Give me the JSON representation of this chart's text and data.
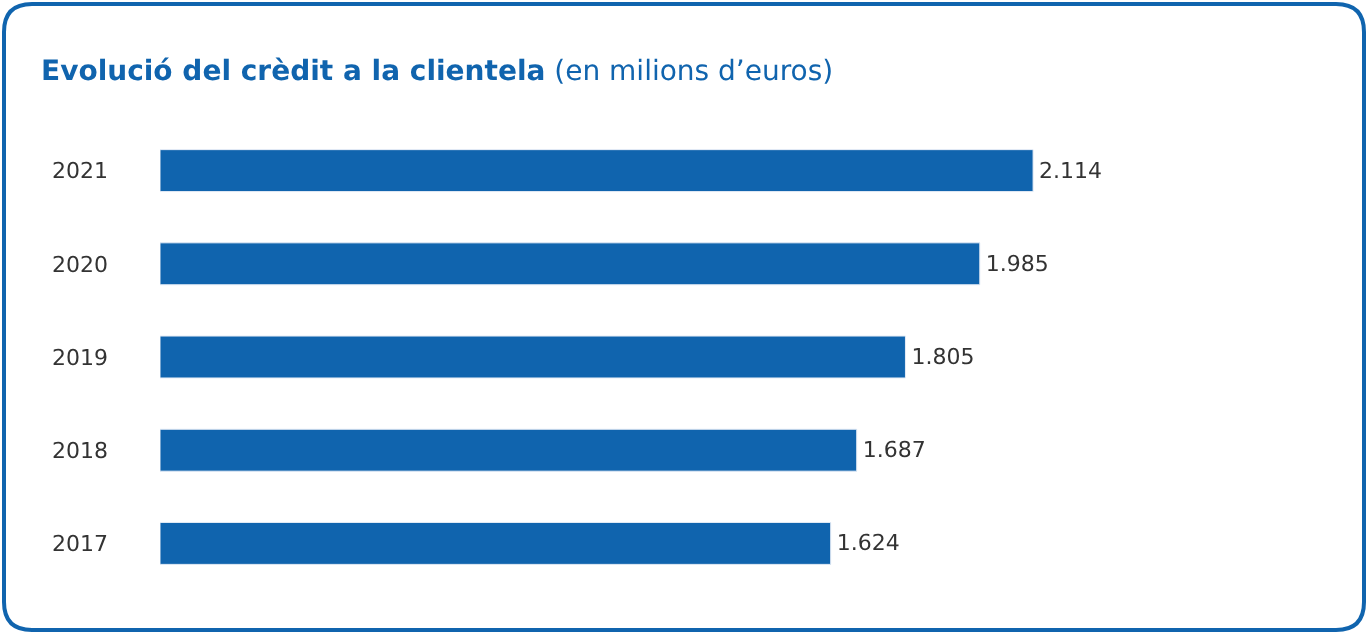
{
  "chart_data": {
    "type": "bar",
    "orientation": "horizontal",
    "title": "Evolució del crèdit a la clientela",
    "subtitle": "(en milions d’euros)",
    "categories": [
      "2021",
      "2020",
      "2019",
      "2018",
      "2017"
    ],
    "values": [
      2114,
      1985,
      1805,
      1687,
      1624
    ],
    "value_labels": [
      "2.114",
      "1.985",
      "1.805",
      "1.687",
      "1.624"
    ],
    "color": "#1064ae"
  }
}
